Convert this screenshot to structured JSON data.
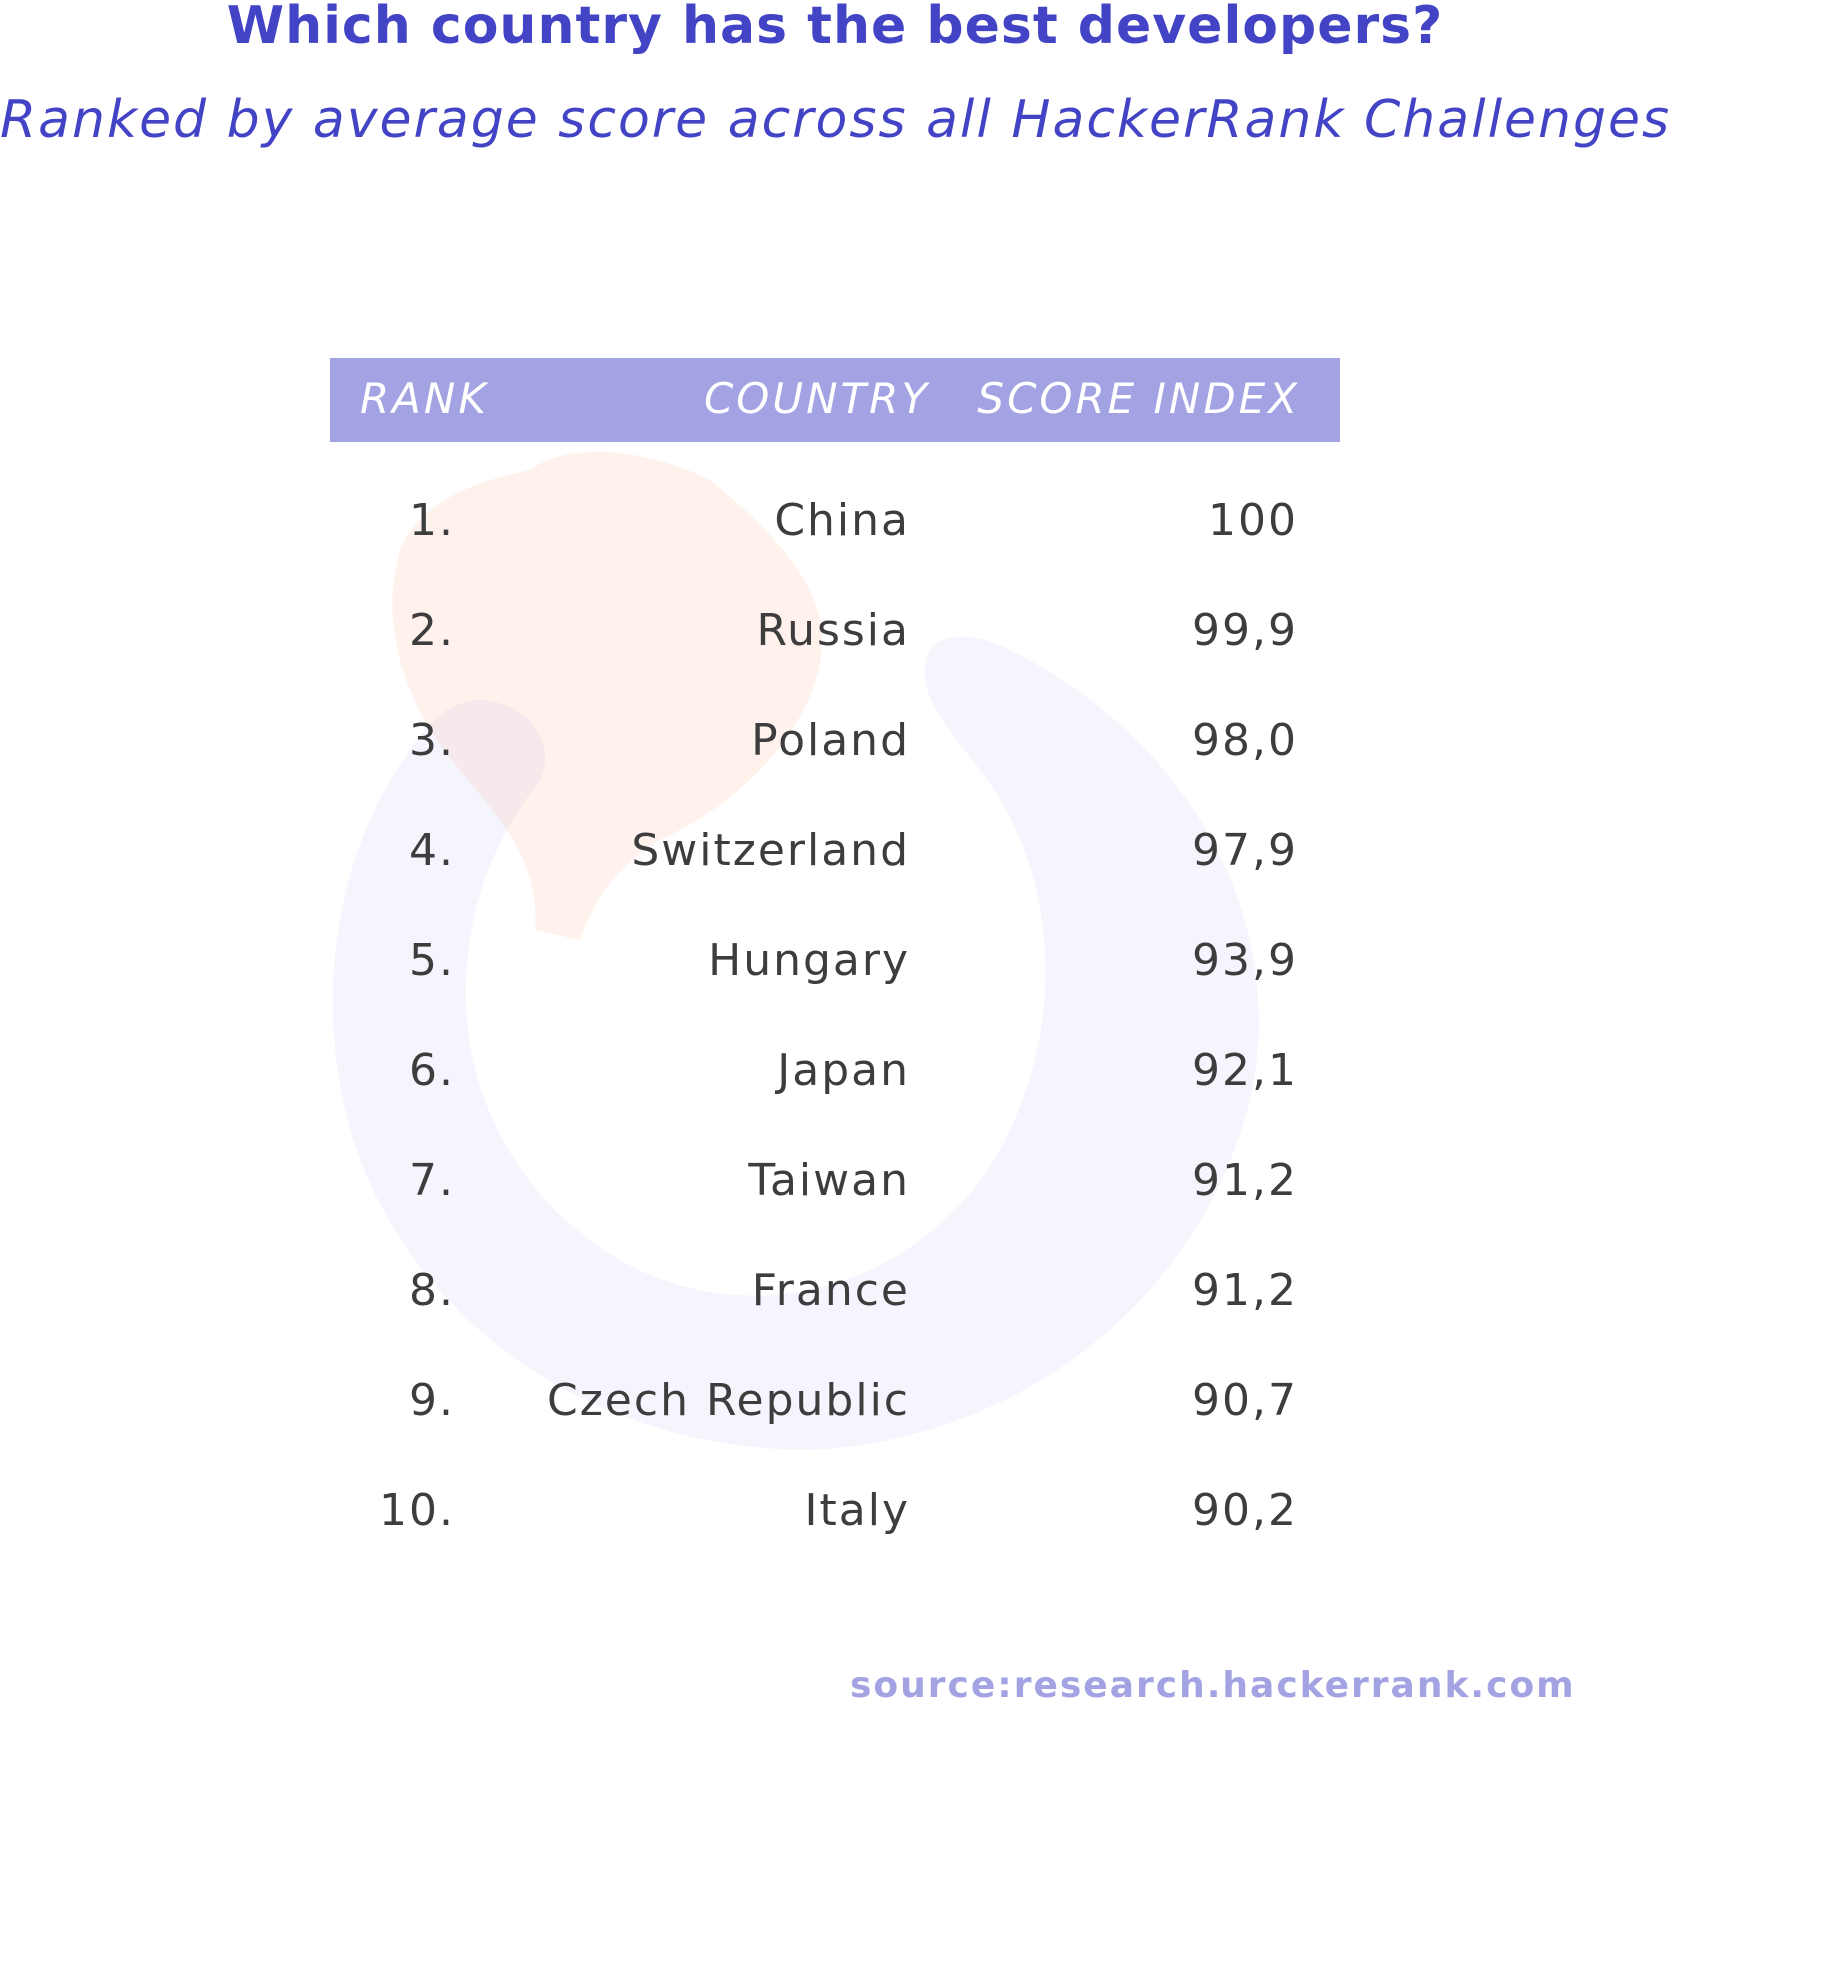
{
  "title": "Which country has the best developers?",
  "subtitle": "Ranked by average score across all HackerRank Challenges",
  "source": "source:research.hackerrank.com",
  "colors": {
    "title": "#4343c6",
    "header_bg": "#a3a3e3",
    "header_text": "#ffffff",
    "body_text": "#3d3d3d",
    "source_text": "#a3a3e3"
  },
  "watermark": {
    "icon": "hackerrank-logo-icon"
  },
  "chart_data": {
    "type": "table",
    "columns": [
      "RANK",
      "COUNTRY",
      "SCORE INDEX"
    ],
    "rows": [
      {
        "rank": "1.",
        "country": "China",
        "score": "100"
      },
      {
        "rank": "2.",
        "country": "Russia",
        "score": "99,9"
      },
      {
        "rank": "3.",
        "country": "Poland",
        "score": "98,0"
      },
      {
        "rank": "4.",
        "country": "Switzerland",
        "score": "97,9"
      },
      {
        "rank": "5.",
        "country": "Hungary",
        "score": "93,9"
      },
      {
        "rank": "6.",
        "country": "Japan",
        "score": "92,1"
      },
      {
        "rank": "7.",
        "country": "Taiwan",
        "score": "91,2"
      },
      {
        "rank": "8.",
        "country": "France",
        "score": "91,2"
      },
      {
        "rank": "9.",
        "country": "Czech Republic",
        "score": "90,7"
      },
      {
        "rank": "10.",
        "country": "Italy",
        "score": "90,2"
      }
    ],
    "title": "Which country has the best developers?",
    "subtitle": "Ranked by average score across all HackerRank Challenges"
  }
}
